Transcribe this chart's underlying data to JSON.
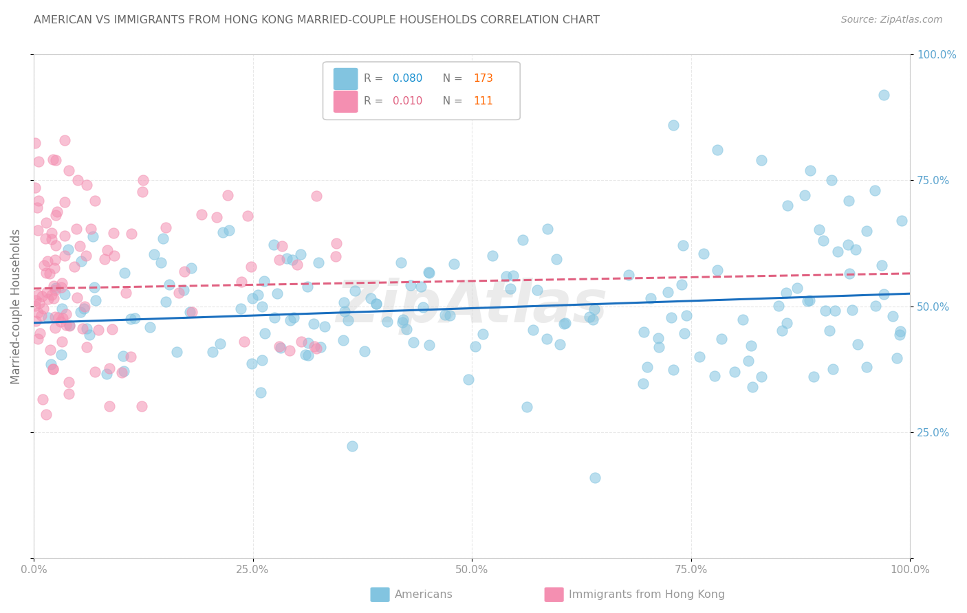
{
  "title": "AMERICAN VS IMMIGRANTS FROM HONG KONG MARRIED-COUPLE HOUSEHOLDS CORRELATION CHART",
  "source": "Source: ZipAtlas.com",
  "ylabel": "Married-couple Households",
  "xlim": [
    0,
    1
  ],
  "ylim": [
    0,
    1
  ],
  "xtick_labels": [
    "0.0%",
    "25.0%",
    "50.0%",
    "75.0%",
    "100.0%"
  ],
  "ytick_labels": [
    "",
    "25.0%",
    "50.0%",
    "75.0%",
    "100.0%"
  ],
  "american_color": "#82C4E0",
  "hk_color": "#F48FB1",
  "american_trend_color": "#1A6FBF",
  "hk_trend_color": "#E06080",
  "watermark": "ZipAtlas",
  "background_color": "#FFFFFF",
  "grid_color": "#E8E8E8",
  "title_color": "#555555",
  "axis_color": "#CCCCCC",
  "legend_R_color_am": "#1A90D0",
  "legend_N_color_am": "#FF6600",
  "legend_R_color_hk": "#E06080",
  "legend_N_color_hk": "#FF6600",
  "american_N": 173,
  "hk_N": 111,
  "american_R": 0.08,
  "hk_R": 0.01,
  "american_trend_intercept": 0.467,
  "american_trend_slope": 0.058,
  "hk_trend_intercept": 0.535,
  "hk_trend_slope": 0.03
}
